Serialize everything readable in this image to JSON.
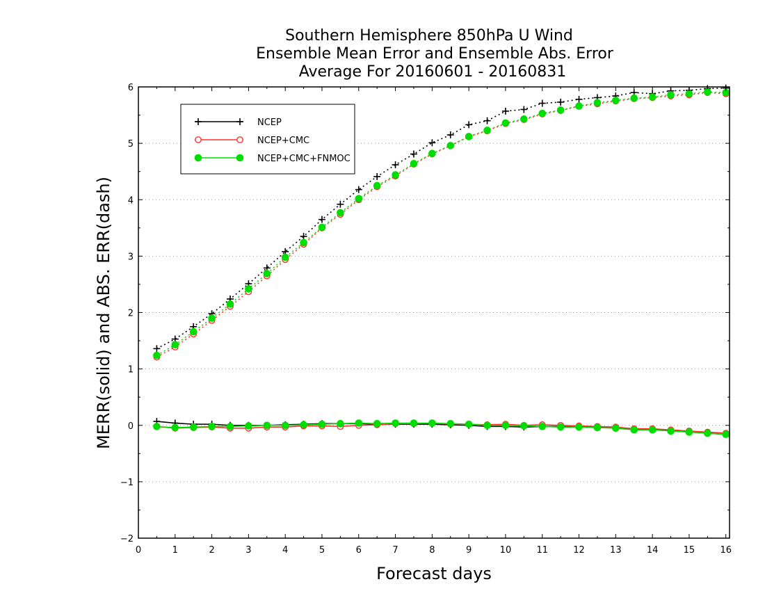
{
  "chart_data": {
    "type": "line",
    "title": [
      "Southern Hemisphere 850hPa U Wind",
      "Ensemble Mean Error and Ensemble Abs. Error",
      "Average For 20160601 - 20160831"
    ],
    "xlabel": "Forecast days",
    "ylabel": "MERR(solid) and ABS. ERR(dash)",
    "xlim": [
      0,
      16.1
    ],
    "ylim": [
      -2,
      6
    ],
    "xticks": [
      "0",
      "1",
      "2",
      "3",
      "4",
      "5",
      "6",
      "7",
      "8",
      "9",
      "10",
      "11",
      "12",
      "13",
      "14",
      "15",
      "16"
    ],
    "yticks": [
      "-2",
      "-1",
      "0",
      "1",
      "2",
      "3",
      "4",
      "5",
      "6"
    ],
    "grid": "horizontal-dotted",
    "legend_position": "top-left",
    "x": [
      0.5,
      1,
      1.5,
      2,
      2.5,
      3,
      3.5,
      4,
      4.5,
      5,
      5.5,
      6,
      6.5,
      7,
      7.5,
      8,
      8.5,
      9,
      9.5,
      10,
      10.5,
      11,
      11.5,
      12,
      12.5,
      13,
      13.5,
      14,
      14.5,
      15,
      15.5,
      16
    ],
    "series": [
      {
        "name": "NCEP",
        "color": "#000000",
        "marker": "plus",
        "merr": [
          0.07,
          0.04,
          0.02,
          0.02,
          0.0,
          0.0,
          0.0,
          0.01,
          0.02,
          0.03,
          0.03,
          0.03,
          0.02,
          0.02,
          0.02,
          0.02,
          0.01,
          0.0,
          -0.02,
          -0.02,
          -0.03,
          -0.02,
          -0.02,
          -0.03,
          -0.03,
          -0.05,
          -0.07,
          -0.07,
          -0.09,
          -0.11,
          -0.14,
          -0.16
        ],
        "abs_err": [
          1.36,
          1.53,
          1.75,
          1.98,
          2.24,
          2.51,
          2.79,
          3.08,
          3.35,
          3.65,
          3.92,
          4.18,
          4.41,
          4.62,
          4.81,
          5.01,
          5.15,
          5.33,
          5.4,
          5.57,
          5.6,
          5.71,
          5.73,
          5.78,
          5.81,
          5.84,
          5.9,
          5.88,
          5.93,
          5.94,
          5.97,
          5.98
        ]
      },
      {
        "name": "NCEP+CMC",
        "color": "#ff3030",
        "marker": "open-circle",
        "merr": [
          -0.02,
          -0.05,
          -0.04,
          -0.03,
          -0.05,
          -0.05,
          -0.03,
          -0.03,
          -0.01,
          -0.01,
          -0.02,
          0.0,
          0.01,
          0.03,
          0.03,
          0.04,
          0.02,
          0.02,
          0.01,
          0.02,
          0.0,
          0.01,
          0.0,
          -0.01,
          -0.02,
          -0.03,
          -0.06,
          -0.06,
          -0.08,
          -0.1,
          -0.12,
          -0.14
        ],
        "abs_err": [
          1.21,
          1.39,
          1.62,
          1.86,
          2.11,
          2.37,
          2.65,
          2.94,
          3.21,
          3.5,
          3.74,
          4.0,
          4.23,
          4.42,
          4.63,
          4.81,
          4.96,
          5.12,
          5.22,
          5.35,
          5.42,
          5.52,
          5.58,
          5.66,
          5.7,
          5.75,
          5.79,
          5.81,
          5.84,
          5.86,
          5.9,
          5.88
        ]
      },
      {
        "name": "NCEP+CMC+FNMOC",
        "color": "#00dd00",
        "marker": "filled-circle",
        "merr": [
          -0.02,
          -0.04,
          -0.03,
          -0.02,
          -0.02,
          -0.01,
          0.0,
          0.0,
          0.01,
          0.02,
          0.03,
          0.04,
          0.03,
          0.04,
          0.04,
          0.04,
          0.03,
          0.02,
          0.0,
          0.0,
          -0.01,
          -0.02,
          -0.03,
          -0.03,
          -0.04,
          -0.05,
          -0.08,
          -0.08,
          -0.1,
          -0.12,
          -0.14,
          -0.16
        ],
        "abs_err": [
          1.24,
          1.43,
          1.66,
          1.9,
          2.15,
          2.42,
          2.69,
          2.98,
          3.24,
          3.51,
          3.77,
          4.02,
          4.25,
          4.44,
          4.64,
          4.82,
          4.96,
          5.12,
          5.23,
          5.36,
          5.43,
          5.53,
          5.59,
          5.66,
          5.72,
          5.76,
          5.8,
          5.82,
          5.86,
          5.88,
          5.91,
          5.9
        ]
      }
    ]
  }
}
